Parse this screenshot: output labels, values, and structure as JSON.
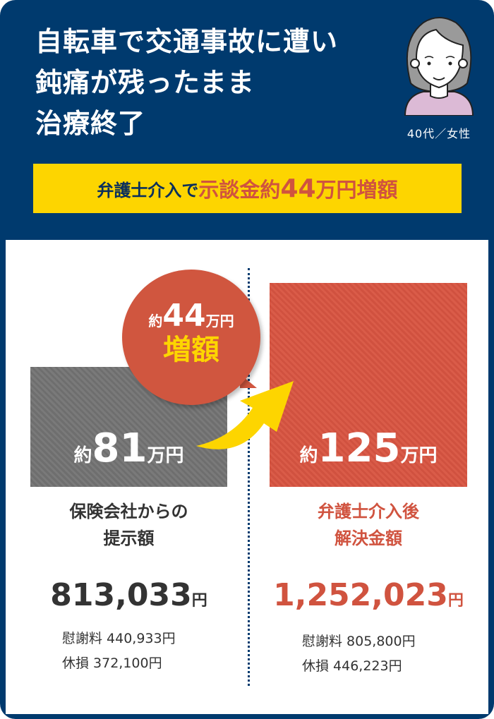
{
  "header": {
    "title_lines": [
      "自転車で交通事故に遭い",
      "鈍痛が残ったまま",
      "治療終了"
    ],
    "profile": "40代／女性",
    "avatar_icon": "woman-avatar-icon"
  },
  "banner": {
    "part1": "弁護士介入で",
    "part2": "示談金約",
    "part3": "44",
    "part4": "万円増額"
  },
  "bubble": {
    "prefix": "約",
    "number": "44",
    "unit": "万円",
    "label": "増額"
  },
  "before": {
    "box_prefix": "約",
    "box_number": "81",
    "box_unit": "万円",
    "label_lines": [
      "保険会社からの",
      "提示額"
    ],
    "total": "813,033",
    "total_unit": "円",
    "details": [
      "慰謝料 440,933円",
      "休損 372,100円"
    ],
    "color": "#6e6e6e"
  },
  "after": {
    "box_prefix": "約",
    "box_number": "125",
    "box_unit": "万円",
    "label_lines": [
      "弁護士介入後",
      "解決金額"
    ],
    "total": "1,252,023",
    "total_unit": "円",
    "details": [
      "慰謝料 805,800円",
      "休損 446,223円"
    ],
    "color": "#d0513f"
  },
  "colors": {
    "navy": "#003a6e",
    "yellow": "#fdd500",
    "red": "#d0533f"
  }
}
